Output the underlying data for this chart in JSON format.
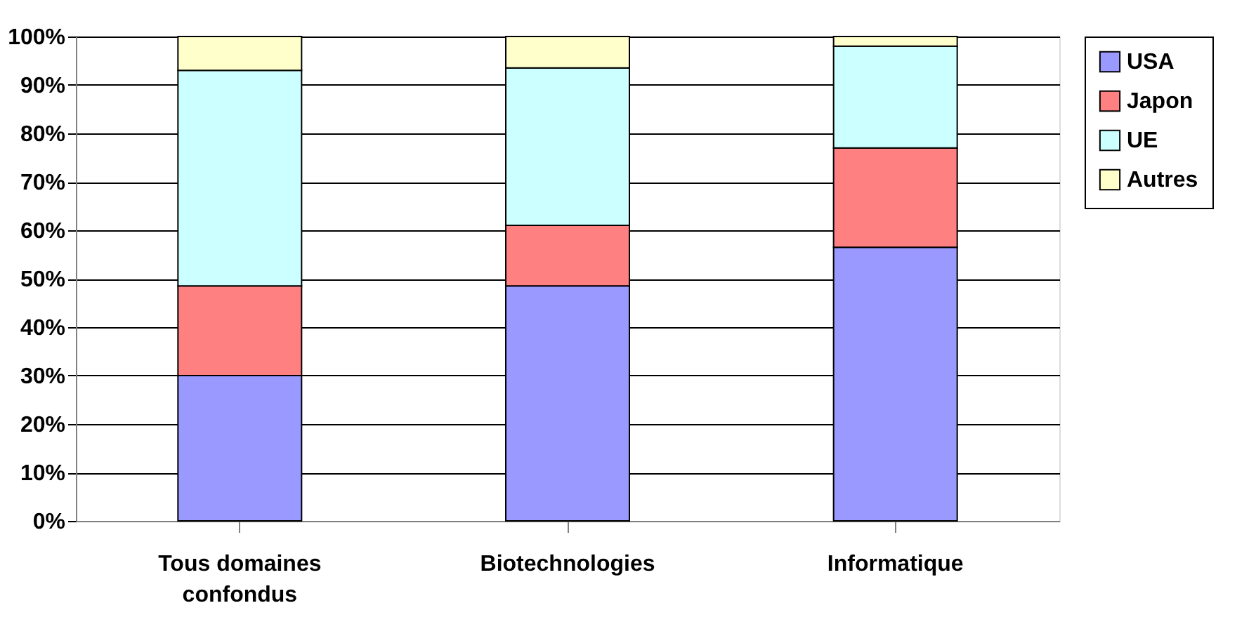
{
  "chart_data": {
    "type": "bar",
    "stacked": true,
    "categories": [
      "Tous domaines confondus",
      "Biotechnologies",
      "Informatique"
    ],
    "series": [
      {
        "name": "USA",
        "color": "#9999ff",
        "values": [
          30,
          48.5,
          56.5
        ]
      },
      {
        "name": "Japon",
        "color": "#ff8080",
        "values": [
          18.5,
          12.5,
          20.5
        ]
      },
      {
        "name": "UE",
        "color": "#ccffff",
        "values": [
          44.5,
          32.5,
          21
        ]
      },
      {
        "name": "Autres",
        "color": "#ffffcc",
        "values": [
          7,
          6.5,
          2
        ]
      }
    ],
    "ylim": [
      0,
      100
    ],
    "yticks": [
      {
        "value": 0,
        "label": "0%"
      },
      {
        "value": 10,
        "label": "10%"
      },
      {
        "value": 20,
        "label": "20%"
      },
      {
        "value": 30,
        "label": "30%"
      },
      {
        "value": 40,
        "label": "40%"
      },
      {
        "value": 50,
        "label": "50%"
      },
      {
        "value": 60,
        "label": "60%"
      },
      {
        "value": 70,
        "label": "70%"
      },
      {
        "value": 80,
        "label": "80%"
      },
      {
        "value": 90,
        "label": "90%"
      },
      {
        "value": 100,
        "label": "100%"
      }
    ],
    "grid": "y",
    "legend": "right"
  }
}
